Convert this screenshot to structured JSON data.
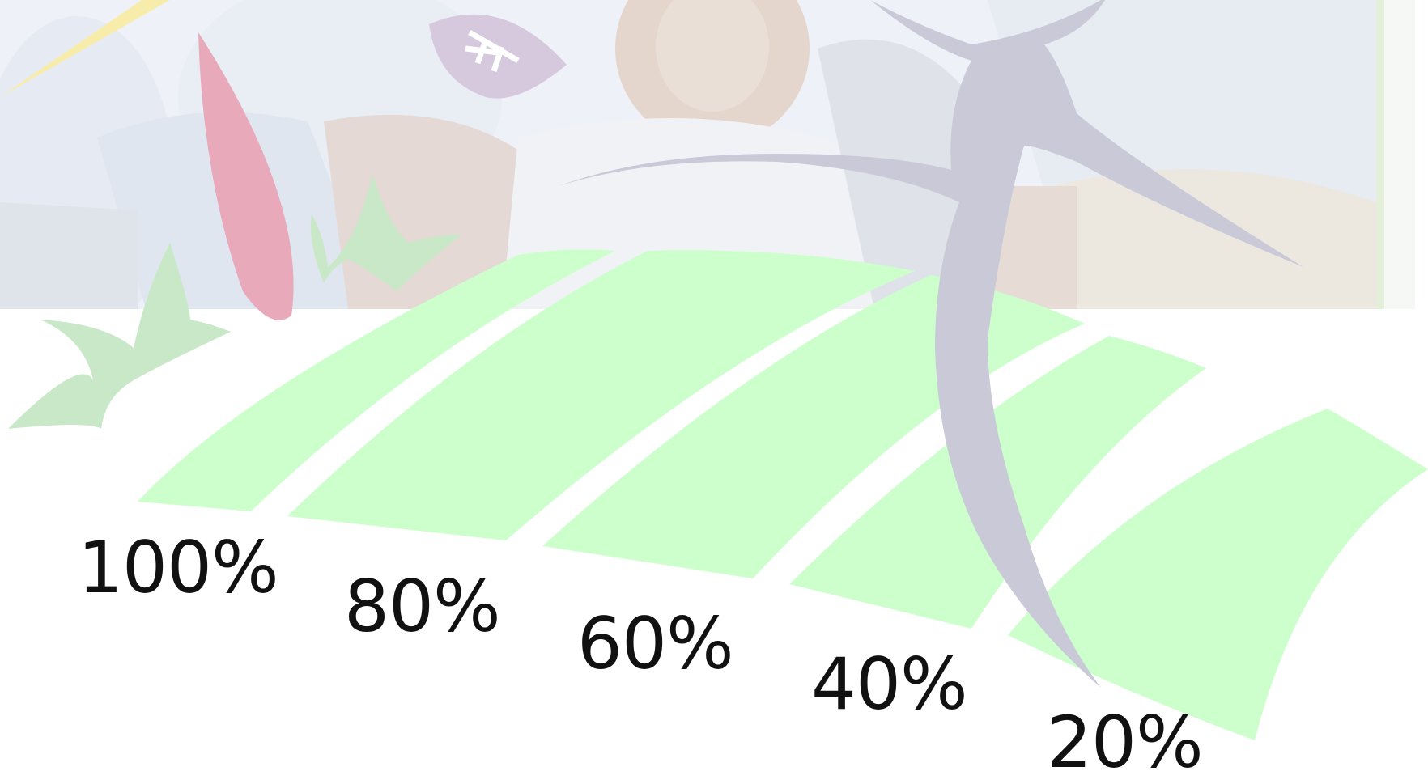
{
  "colors": {
    "band_fill": "#ccffcc",
    "figure": "#c9c9d8",
    "petal_pink": "#e8a9ba",
    "leaf_green": "#c8e8c8",
    "leaf_purple": "#d7c9dd",
    "sun_yellow": "#f7ecaa",
    "label_text": "#111111",
    "photo_sky": "#eef2f8",
    "photo_grass": "#e3efd9"
  },
  "segments": [
    {
      "label": "100%",
      "level": 1.0
    },
    {
      "label": "80%",
      "level": 0.8
    },
    {
      "label": "60%",
      "level": 0.6
    },
    {
      "label": "40%",
      "level": 0.4
    },
    {
      "label": "20%",
      "level": 0.2
    }
  ],
  "icons": {
    "photo": "group-photo",
    "figure": "dancing-figure-icon",
    "sun": "sun-ray-icon",
    "petal": "pink-petal-icon",
    "leaves": "green-leaf-icon",
    "purple_leaf": "purple-leaf-icon"
  }
}
